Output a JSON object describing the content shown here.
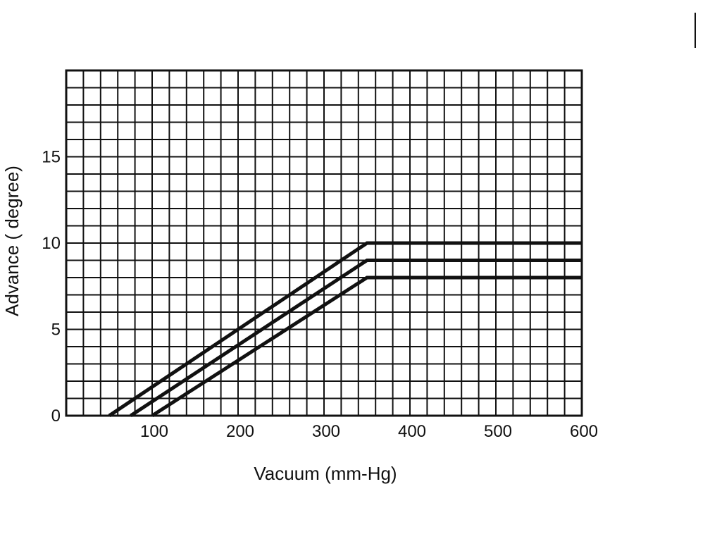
{
  "chart_data": {
    "type": "line",
    "xlabel": "Vacuum (mm-Hg)",
    "ylabel": "Advance ( degree)",
    "xlim": [
      0,
      600
    ],
    "ylim": [
      0,
      20
    ],
    "x_ticks": [
      {
        "value": 100,
        "label": "100"
      },
      {
        "value": 200,
        "label": "200"
      },
      {
        "value": 300,
        "label": "300"
      },
      {
        "value": 400,
        "label": "400"
      },
      {
        "value": 500,
        "label": "500"
      },
      {
        "value": 600,
        "label": "600"
      }
    ],
    "y_ticks": [
      {
        "value": 0,
        "label": "0"
      },
      {
        "value": 5,
        "label": "5"
      },
      {
        "value": 10,
        "label": "10"
      },
      {
        "value": 15,
        "label": "15"
      }
    ],
    "grid": true,
    "grid_step_x": 20,
    "grid_step_y": 1,
    "legend": "none",
    "colors": {
      "ink": "#111111",
      "background": "#ffffff"
    },
    "series": [
      {
        "x": [
          50,
          350,
          600
        ],
        "y": [
          0,
          10,
          10
        ]
      },
      {
        "x": [
          75,
          350,
          600
        ],
        "y": [
          0,
          9,
          9
        ]
      },
      {
        "x": [
          100,
          350,
          600
        ],
        "y": [
          0,
          8,
          8
        ]
      }
    ]
  }
}
